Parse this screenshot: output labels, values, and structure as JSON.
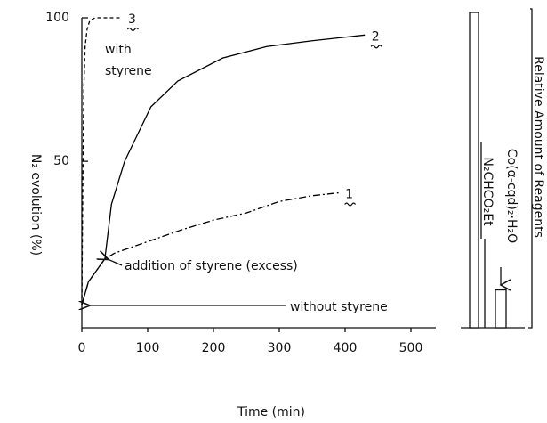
{
  "chart_data": [
    {
      "type": "line",
      "xlabel": "Time (min)",
      "ylabel": "N₂ evolution (%)",
      "xlim": [
        0,
        500
      ],
      "xticks": [
        0,
        100,
        200,
        300,
        400,
        500
      ],
      "ylim": [
        -8,
        100
      ],
      "yticks": [
        50,
        100
      ],
      "series": [
        {
          "name": "1",
          "color": "#000000",
          "dash": "dashdot",
          "x": [
            0,
            10,
            35,
            50,
            100,
            150,
            200,
            250,
            300,
            350,
            390
          ],
          "values": [
            0,
            8,
            16,
            18,
            22,
            26,
            29.5,
            32,
            36,
            38,
            39
          ]
        },
        {
          "name": "2",
          "color": "#000000",
          "dash": "solid",
          "x": [
            0,
            10,
            35,
            45,
            65,
            105,
            146,
            214,
            281,
            350,
            430
          ],
          "values": [
            0,
            8,
            16,
            35,
            50,
            69,
            78,
            86,
            90,
            92,
            94
          ]
        },
        {
          "name": "3",
          "color": "#000000",
          "dash": "dashed",
          "x": [
            0,
            1,
            2,
            3,
            5,
            8,
            12,
            20,
            35,
            60
          ],
          "values": [
            0,
            30,
            55,
            75,
            90,
            96,
            99,
            100,
            100,
            100
          ]
        }
      ],
      "annotations": [
        "with",
        "styrene",
        "addition of styrene (excess)",
        "without styrene"
      ]
    },
    {
      "type": "bar",
      "ylabel": "Relative Amount of Reagents",
      "categories": [
        "N₂CHCO₂Et",
        "Co(α-cqd)₂·H₂O"
      ],
      "values": [
        100,
        12
      ],
      "color": "#ffffff"
    }
  ]
}
